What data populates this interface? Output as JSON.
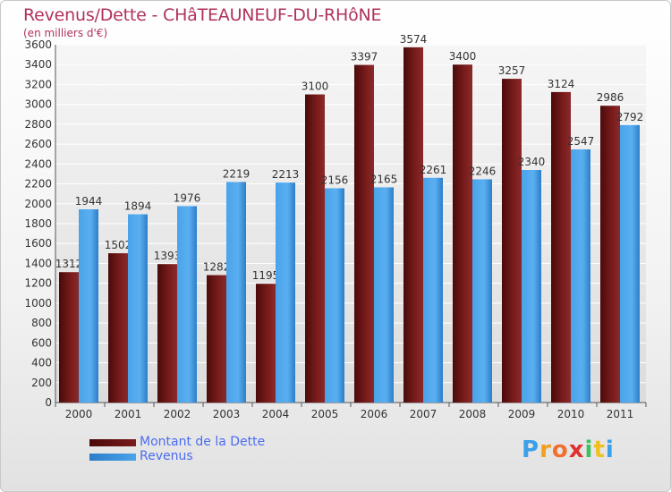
{
  "header": {
    "title": "Revenus/Dette - CHâTEAUNEUF-DU-RHôNE",
    "subtitle": "(en milliers d'€)"
  },
  "legend": {
    "debt_label": "Montant de la Dette",
    "revenue_label": "Revenus"
  },
  "logo": {
    "letters": [
      "P",
      "r",
      "o",
      "x",
      "i",
      "t",
      "i"
    ],
    "colors": [
      "#3aa0e8",
      "#f0a020",
      "#f07030",
      "#e03030",
      "#3cc060",
      "#f0c020",
      "#3aa0e8"
    ]
  },
  "colors": {
    "debt": "#7a1c1c",
    "debt_dark": "#4a0a0a",
    "revenue": "#4aa3ea",
    "revenue_dark": "#2c7ec8"
  },
  "chart_data": {
    "type": "bar",
    "title": "Revenus/Dette - CHâTEAUNEUF-DU-RHôNE",
    "ylabel": "(en milliers d'€)",
    "xlabel": "",
    "categories": [
      "2000",
      "2001",
      "2002",
      "2003",
      "2004",
      "2005",
      "2006",
      "2007",
      "2008",
      "2009",
      "2010",
      "2011"
    ],
    "series": [
      {
        "name": "Montant de la Dette",
        "values": [
          1312,
          1502,
          1393,
          1282,
          1195,
          3100,
          3397,
          3574,
          3400,
          3257,
          3124,
          2986
        ],
        "labels": [
          "1312",
          "1502",
          "1393",
          "1282",
          "1195",
          "3100",
          "3397",
          "3574",
          "3400",
          "3257",
          "3124",
          "2986"
        ]
      },
      {
        "name": "Revenus",
        "values": [
          1944,
          1894,
          1976,
          2219,
          2213,
          2156,
          2165,
          2261,
          2246,
          2340,
          2547,
          2792
        ],
        "labels": [
          "1944",
          "1894",
          "1976",
          "2219",
          "2213",
          "2156",
          "2165",
          "2261",
          "2246",
          "2340",
          "2547",
          "2792"
        ]
      }
    ],
    "ylim": [
      0,
      3600
    ],
    "yticks": [
      "0",
      "200",
      "400",
      "600",
      "800",
      "1000",
      "1200",
      "1400",
      "1600",
      "1800",
      "2000",
      "2200",
      "2400",
      "2600",
      "2800",
      "3000",
      "3200",
      "3400",
      "3600"
    ],
    "grid": true,
    "legend_position": "bottom-left"
  }
}
